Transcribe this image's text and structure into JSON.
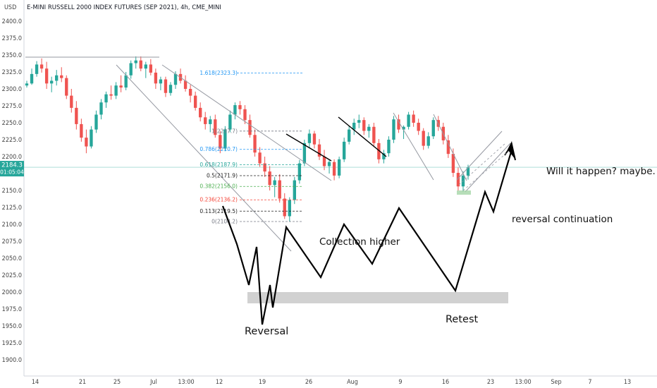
{
  "header": {
    "currency": "USD",
    "symbol": "E-MINI RUSSELL 2000 INDEX FUTURES (SEP 2021), 4h, CME_MINI"
  },
  "price_label": {
    "price": "2184.3",
    "countdown": "01:05:04"
  },
  "colors": {
    "up": "#26a69a",
    "down": "#ef5350",
    "price_line": "#26a69a",
    "trendline": "#9598a1",
    "drawing": "#000000",
    "zone": "#cfcfcf",
    "fib_top": "#2196f3"
  },
  "chart_data": {
    "type": "candlestick",
    "title": "E-MINI RUSSELL 2000 INDEX FUTURES (SEP 2021), 4h, CME_MINI",
    "ylim": [
      1888,
      2425
    ],
    "y_ticks": [
      "2400.0",
      "2375.0",
      "2350.0",
      "2325.0",
      "2300.0",
      "2275.0",
      "2250.0",
      "2225.0",
      "2200.0",
      "2175.0",
      "2150.0",
      "2125.0",
      "2100.0",
      "2075.0",
      "2050.0",
      "2025.0",
      "2000.0",
      "1975.0",
      "1950.0",
      "1925.0",
      "1900.0"
    ],
    "x_ticks": [
      "14",
      "21",
      "25",
      "Jul",
      "13:00",
      "12",
      "19",
      "26",
      "Aug",
      "9",
      "16",
      "23",
      "13:00",
      "Sep",
      "7",
      "13"
    ],
    "last_price": 2184.3,
    "candles": [
      [
        2305,
        2312,
        2302,
        2308
      ],
      [
        2308,
        2330,
        2306,
        2322
      ],
      [
        2322,
        2341,
        2318,
        2336
      ],
      [
        2336,
        2345,
        2324,
        2330
      ],
      [
        2330,
        2340,
        2300,
        2308
      ],
      [
        2308,
        2318,
        2295,
        2312
      ],
      [
        2312,
        2328,
        2305,
        2320
      ],
      [
        2320,
        2332,
        2310,
        2316
      ],
      [
        2316,
        2320,
        2285,
        2290
      ],
      [
        2290,
        2300,
        2265,
        2272
      ],
      [
        2272,
        2282,
        2240,
        2248
      ],
      [
        2248,
        2256,
        2222,
        2228
      ],
      [
        2228,
        2240,
        2205,
        2215
      ],
      [
        2215,
        2245,
        2212,
        2240
      ],
      [
        2240,
        2268,
        2235,
        2262
      ],
      [
        2262,
        2285,
        2255,
        2280
      ],
      [
        2280,
        2296,
        2272,
        2292
      ],
      [
        2292,
        2305,
        2284,
        2290
      ],
      [
        2290,
        2310,
        2285,
        2305
      ],
      [
        2305,
        2320,
        2295,
        2302
      ],
      [
        2302,
        2325,
        2298,
        2320
      ],
      [
        2320,
        2342,
        2315,
        2338
      ],
      [
        2338,
        2348,
        2330,
        2342
      ],
      [
        2342,
        2348,
        2326,
        2330
      ],
      [
        2330,
        2340,
        2316,
        2336
      ],
      [
        2336,
        2344,
        2320,
        2324
      ],
      [
        2324,
        2330,
        2300,
        2308
      ],
      [
        2308,
        2318,
        2298,
        2314
      ],
      [
        2314,
        2318,
        2288,
        2294
      ],
      [
        2294,
        2310,
        2290,
        2306
      ],
      [
        2306,
        2326,
        2300,
        2322
      ],
      [
        2322,
        2330,
        2308,
        2312
      ],
      [
        2312,
        2320,
        2296,
        2300
      ],
      [
        2300,
        2306,
        2280,
        2290
      ],
      [
        2290,
        2296,
        2268,
        2272
      ],
      [
        2272,
        2280,
        2252,
        2258
      ],
      [
        2258,
        2266,
        2240,
        2248
      ],
      [
        2248,
        2260,
        2236,
        2255
      ],
      [
        2255,
        2262,
        2228,
        2232
      ],
      [
        2232,
        2238,
        2205,
        2212
      ],
      [
        2212,
        2245,
        2208,
        2240
      ],
      [
        2240,
        2268,
        2236,
        2262
      ],
      [
        2262,
        2280,
        2255,
        2276
      ],
      [
        2276,
        2282,
        2262,
        2270
      ],
      [
        2270,
        2276,
        2248,
        2254
      ],
      [
        2254,
        2262,
        2228,
        2232
      ],
      [
        2232,
        2240,
        2200,
        2206
      ],
      [
        2206,
        2214,
        2185,
        2190
      ],
      [
        2190,
        2200,
        2170,
        2178
      ],
      [
        2178,
        2186,
        2150,
        2158
      ],
      [
        2158,
        2170,
        2140,
        2165
      ],
      [
        2165,
        2174,
        2132,
        2138
      ],
      [
        2138,
        2146,
        2108,
        2112
      ],
      [
        2112,
        2140,
        2104,
        2136
      ],
      [
        2136,
        2170,
        2130,
        2165
      ],
      [
        2165,
        2195,
        2160,
        2190
      ],
      [
        2190,
        2225,
        2186,
        2220
      ],
      [
        2220,
        2240,
        2212,
        2234
      ],
      [
        2234,
        2238,
        2212,
        2218
      ],
      [
        2218,
        2226,
        2195,
        2200
      ],
      [
        2200,
        2210,
        2180,
        2186
      ],
      [
        2186,
        2196,
        2175,
        2192
      ],
      [
        2192,
        2196,
        2165,
        2172
      ],
      [
        2172,
        2200,
        2168,
        2196
      ],
      [
        2196,
        2228,
        2192,
        2222
      ],
      [
        2222,
        2245,
        2218,
        2240
      ],
      [
        2240,
        2256,
        2232,
        2250
      ],
      [
        2250,
        2262,
        2242,
        2254
      ],
      [
        2254,
        2258,
        2232,
        2238
      ],
      [
        2238,
        2248,
        2228,
        2244
      ],
      [
        2244,
        2250,
        2215,
        2220
      ],
      [
        2220,
        2226,
        2190,
        2196
      ],
      [
        2196,
        2210,
        2190,
        2205
      ],
      [
        2205,
        2230,
        2200,
        2225
      ],
      [
        2225,
        2260,
        2220,
        2255
      ],
      [
        2255,
        2262,
        2235,
        2240
      ],
      [
        2240,
        2246,
        2226,
        2244
      ],
      [
        2244,
        2266,
        2240,
        2262
      ],
      [
        2262,
        2268,
        2244,
        2250
      ],
      [
        2250,
        2256,
        2232,
        2238
      ],
      [
        2238,
        2242,
        2210,
        2216
      ],
      [
        2216,
        2236,
        2212,
        2230
      ],
      [
        2230,
        2258,
        2226,
        2254
      ],
      [
        2254,
        2260,
        2238,
        2244
      ],
      [
        2244,
        2250,
        2218,
        2224
      ],
      [
        2224,
        2232,
        2198,
        2204
      ],
      [
        2204,
        2212,
        2170,
        2176
      ],
      [
        2176,
        2184,
        2150,
        2156
      ],
      [
        2156,
        2178,
        2148,
        2172
      ],
      [
        2172,
        2188,
        2166,
        2184
      ]
    ],
    "fib_levels": [
      {
        "label": "1.618(2323.3)",
        "value": 2323.3,
        "color": "#2196f3"
      },
      {
        "label": "1(2237.7)",
        "value": 2237.7,
        "color": "#787b86"
      },
      {
        "label": "0.786(2210.7)",
        "value": 2210.7,
        "color": "#2196f3"
      },
      {
        "label": "0.618(2187.9)",
        "value": 2187.9,
        "color": "#26a69a"
      },
      {
        "label": "0.5(2171.9)",
        "value": 2171.9,
        "color": "#222222"
      },
      {
        "label": "0.382(2156.0)",
        "value": 2156.0,
        "color": "#4caf50"
      },
      {
        "label": "0.236(2136.2)",
        "value": 2136.2,
        "color": "#f44336"
      },
      {
        "label": "0.113(2119.5)",
        "value": 2119.5,
        "color": "#222222"
      },
      {
        "label": "0(2104.2)",
        "value": 2104.2,
        "color": "#787b86"
      }
    ]
  },
  "annotations": {
    "will_it_happen": "Will it happen? maybe.",
    "reversal_continuation": "reversal continuation",
    "collection_higher": "Collection higher",
    "reversal": "Reversal",
    "retest": "Retest"
  }
}
